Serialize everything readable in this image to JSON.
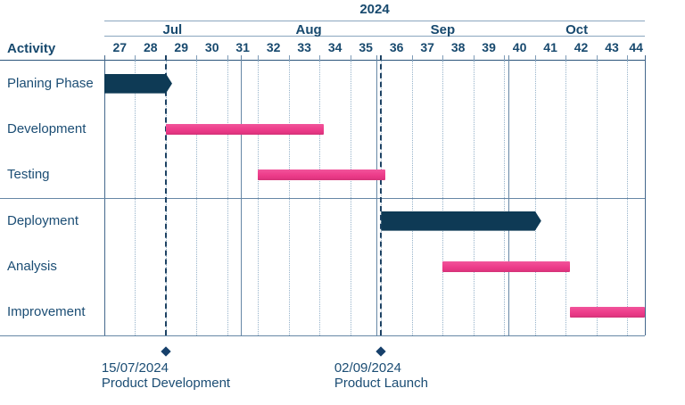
{
  "title": "2024",
  "activity_header": "Activity",
  "colors": {
    "bar_navy": "#0e3a55",
    "bar_pink": "#ee3f8c",
    "text_navy": "#17496e",
    "grid_dotted": "#97b3ca",
    "grid_solid": "#6687a6",
    "frame": "#44688c",
    "header_line": "#8ba6bf",
    "milestone_dashed": "#1d4263"
  },
  "chart_data": {
    "type": "gantt",
    "title": "2024",
    "axis": {
      "start": "2024-07-01",
      "end": "2024-10-31",
      "unit": "week"
    },
    "months": [
      "Jul",
      "Aug",
      "Sep",
      "Oct"
    ],
    "weeks": [
      27,
      28,
      29,
      30,
      31,
      32,
      33,
      34,
      35,
      36,
      37,
      38,
      39,
      40,
      41,
      42,
      43,
      44
    ],
    "activity_column_header": "Activity",
    "activities": [
      {
        "name": "Planing Phase",
        "start": "2024-07-01",
        "end": "2024-07-15",
        "style": "navy-arrow"
      },
      {
        "name": "Development",
        "start": "2024-07-15",
        "end": "2024-08-20",
        "style": "pink"
      },
      {
        "name": "Testing",
        "start": "2024-08-05",
        "end": "2024-09-03",
        "style": "pink"
      },
      {
        "name": "Deployment",
        "start": "2024-09-02",
        "end": "2024-10-07",
        "style": "navy-arrow"
      },
      {
        "name": "Analysis",
        "start": "2024-09-16",
        "end": "2024-10-15",
        "style": "pink"
      },
      {
        "name": "Improvement",
        "start": "2024-10-15",
        "end": "2024-10-31",
        "style": "pink"
      }
    ],
    "separator_after_row": 3,
    "milestones": [
      {
        "date": "2024-07-15",
        "date_label": "15/07/2024",
        "label": "Product Development"
      },
      {
        "date": "2024-09-02",
        "date_label": "02/09/2024",
        "label": "Product Launch"
      }
    ],
    "legend": "none",
    "grid": "weekly-dotted, monthly-solid"
  }
}
